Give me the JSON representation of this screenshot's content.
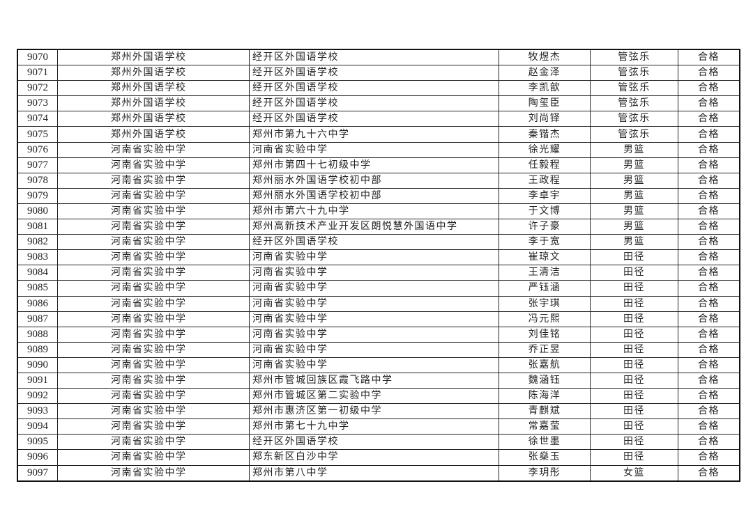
{
  "rows": [
    [
      "9070",
      "郑州外国语学校",
      "经开区外国语学校",
      "牧煜杰",
      "管弦乐",
      "合格"
    ],
    [
      "9071",
      "郑州外国语学校",
      "经开区外国语学校",
      "赵金泽",
      "管弦乐",
      "合格"
    ],
    [
      "9072",
      "郑州外国语学校",
      "经开区外国语学校",
      "李凯歆",
      "管弦乐",
      "合格"
    ],
    [
      "9073",
      "郑州外国语学校",
      "经开区外国语学校",
      "陶玺臣",
      "管弦乐",
      "合格"
    ],
    [
      "9074",
      "郑州外国语学校",
      "经开区外国语学校",
      "刘尚铎",
      "管弦乐",
      "合格"
    ],
    [
      "9075",
      "郑州外国语学校",
      "郑州市第九十六中学",
      "秦锴杰",
      "管弦乐",
      "合格"
    ],
    [
      "9076",
      "河南省实验中学",
      "河南省实验中学",
      "徐光耀",
      "男篮",
      "合格"
    ],
    [
      "9077",
      "河南省实验中学",
      "郑州市第四十七初级中学",
      "任毅程",
      "男篮",
      "合格"
    ],
    [
      "9078",
      "河南省实验中学",
      "郑州丽水外国语学校初中部",
      "王政程",
      "男篮",
      "合格"
    ],
    [
      "9079",
      "河南省实验中学",
      "郑州丽水外国语学校初中部",
      "李卓宇",
      "男篮",
      "合格"
    ],
    [
      "9080",
      "河南省实验中学",
      "郑州市第六十九中学",
      "于文博",
      "男篮",
      "合格"
    ],
    [
      "9081",
      "河南省实验中学",
      "郑州高新技术产业开发区朗悦慧外国语中学",
      "许子豪",
      "男篮",
      "合格"
    ],
    [
      "9082",
      "河南省实验中学",
      "经开区外国语学校",
      "李于宽",
      "男篮",
      "合格"
    ],
    [
      "9083",
      "河南省实验中学",
      "河南省实验中学",
      "崔琼文",
      "田径",
      "合格"
    ],
    [
      "9084",
      "河南省实验中学",
      "河南省实验中学",
      "王清洁",
      "田径",
      "合格"
    ],
    [
      "9085",
      "河南省实验中学",
      "河南省实验中学",
      "严钰涵",
      "田径",
      "合格"
    ],
    [
      "9086",
      "河南省实验中学",
      "河南省实验中学",
      "张宇琪",
      "田径",
      "合格"
    ],
    [
      "9087",
      "河南省实验中学",
      "河南省实验中学",
      "冯元熙",
      "田径",
      "合格"
    ],
    [
      "9088",
      "河南省实验中学",
      "河南省实验中学",
      "刘佳铭",
      "田径",
      "合格"
    ],
    [
      "9089",
      "河南省实验中学",
      "河南省实验中学",
      "乔正昱",
      "田径",
      "合格"
    ],
    [
      "9090",
      "河南省实验中学",
      "河南省实验中学",
      "张嘉航",
      "田径",
      "合格"
    ],
    [
      "9091",
      "河南省实验中学",
      "郑州市管城回族区霞飞路中学",
      "魏涵钰",
      "田径",
      "合格"
    ],
    [
      "9092",
      "河南省实验中学",
      "郑州市管城区第二实验中学",
      "陈海洋",
      "田径",
      "合格"
    ],
    [
      "9093",
      "河南省实验中学",
      "郑州市惠济区第一初级中学",
      "青麒斌",
      "田径",
      "合格"
    ],
    [
      "9094",
      "河南省实验中学",
      "郑州市第七十九中学",
      "常嘉莹",
      "田径",
      "合格"
    ],
    [
      "9095",
      "河南省实验中学",
      "经开区外国语学校",
      "徐世墨",
      "田径",
      "合格"
    ],
    [
      "9096",
      "河南省实验中学",
      "郑东新区白沙中学",
      "张燊玉",
      "田径",
      "合格"
    ],
    [
      "9097",
      "河南省实验中学",
      "郑州市第八中学",
      "李玥彤",
      "女篮",
      "合格"
    ]
  ]
}
